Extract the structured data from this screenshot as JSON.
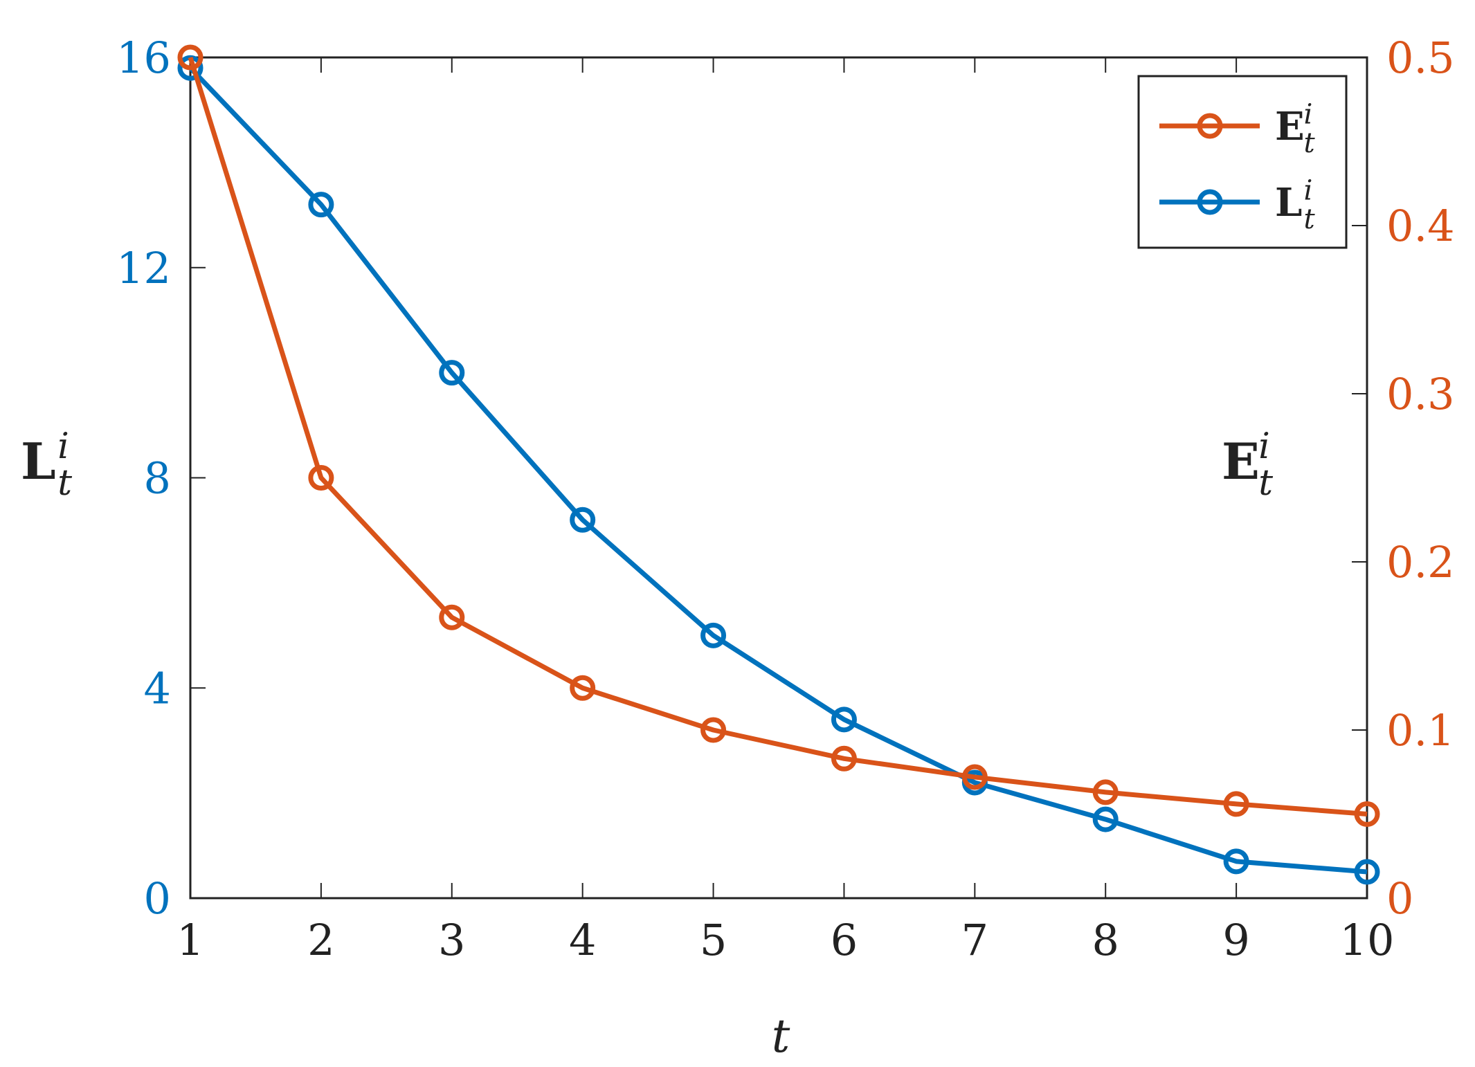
{
  "chart_data": {
    "type": "line",
    "x": [
      1,
      2,
      3,
      4,
      5,
      6,
      7,
      8,
      9,
      10
    ],
    "xlabel": "t",
    "xlim": [
      1,
      10
    ],
    "xticks": [
      "1",
      "2",
      "3",
      "4",
      "5",
      "6",
      "7",
      "8",
      "9",
      "10"
    ],
    "left_axis": {
      "label_base": "L",
      "label_sup": "i",
      "label_sub": "t",
      "ylim": [
        0,
        16
      ],
      "ticks": [
        "0",
        "4",
        "8",
        "12",
        "16"
      ],
      "color": "#0072bd"
    },
    "right_axis": {
      "label_base": "E",
      "label_sup": "i",
      "label_sub": "t",
      "ylim": [
        0,
        0.5
      ],
      "ticks": [
        "0",
        "0.1",
        "0.2",
        "0.3",
        "0.4",
        "0.5"
      ],
      "color": "#d95319"
    },
    "series": [
      {
        "name_base": "E",
        "name_sup": "i",
        "name_sub": "t",
        "axis": "right",
        "color": "#d95319",
        "marker": "circle-open",
        "values": [
          0.5,
          0.25,
          0.167,
          0.125,
          0.1,
          0.083,
          0.072,
          0.063,
          0.056,
          0.05
        ]
      },
      {
        "name_base": "L",
        "name_sup": "i",
        "name_sub": "t",
        "axis": "left",
        "color": "#0072bd",
        "marker": "circle-open",
        "values": [
          15.8,
          13.2,
          10.0,
          7.2,
          5.0,
          3.4,
          2.2,
          1.5,
          0.7,
          0.5
        ]
      }
    ],
    "legend_placement": "top-right",
    "grid": false
  }
}
